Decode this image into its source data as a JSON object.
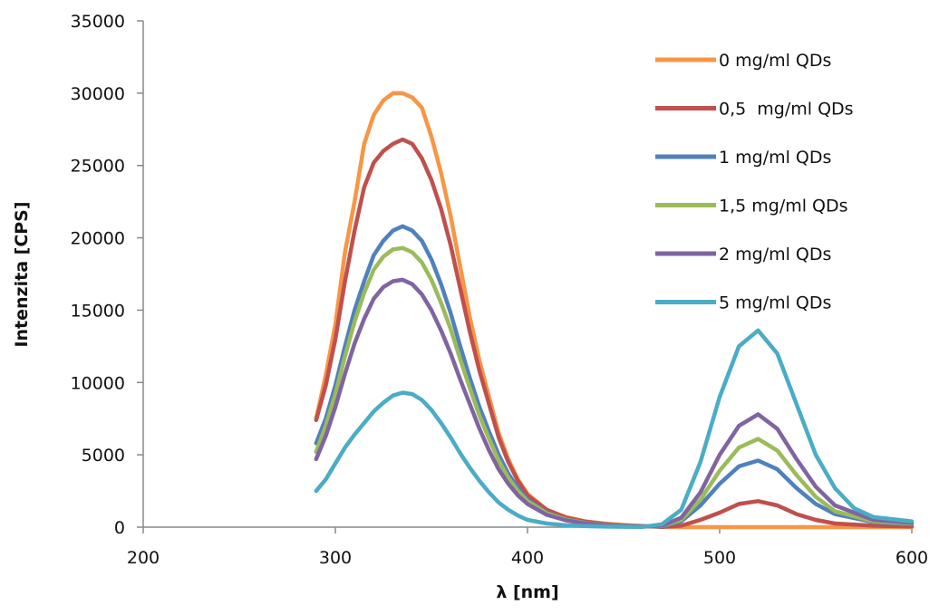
{
  "chart_data": {
    "type": "line",
    "title": "",
    "xlabel": "λ [nm]",
    "ylabel": "Intenzita [CPS]",
    "xlim": [
      200,
      600
    ],
    "ylim": [
      0,
      35000
    ],
    "x_ticks": [
      200,
      300,
      400,
      500,
      600
    ],
    "y_ticks": [
      0,
      5000,
      10000,
      15000,
      20000,
      25000,
      30000,
      35000
    ],
    "grid": false,
    "legend_position": "top-right",
    "series": [
      {
        "name": "0 mg/ml QDs",
        "color": "#F79646",
        "points": [
          [
            290,
            7500
          ],
          [
            295,
            10500
          ],
          [
            300,
            14000
          ],
          [
            305,
            19000
          ],
          [
            310,
            22500
          ],
          [
            315,
            26500
          ],
          [
            320,
            28500
          ],
          [
            325,
            29500
          ],
          [
            330,
            30000
          ],
          [
            335,
            30000
          ],
          [
            340,
            29700
          ],
          [
            345,
            29000
          ],
          [
            350,
            27000
          ],
          [
            355,
            24500
          ],
          [
            360,
            21500
          ],
          [
            365,
            18000
          ],
          [
            370,
            14500
          ],
          [
            375,
            11500
          ],
          [
            380,
            9000
          ],
          [
            385,
            6500
          ],
          [
            390,
            4700
          ],
          [
            395,
            3300
          ],
          [
            400,
            2300
          ],
          [
            410,
            1200
          ],
          [
            420,
            700
          ],
          [
            430,
            400
          ],
          [
            440,
            250
          ],
          [
            450,
            150
          ],
          [
            460,
            80
          ],
          [
            470,
            30
          ],
          [
            480,
            0
          ],
          [
            500,
            0
          ],
          [
            520,
            0
          ],
          [
            540,
            0
          ],
          [
            560,
            0
          ],
          [
            580,
            0
          ],
          [
            600,
            0
          ]
        ]
      },
      {
        "name": "0,5  mg/ml QDs",
        "color": "#C0504D",
        "points": [
          [
            290,
            7400
          ],
          [
            295,
            9800
          ],
          [
            300,
            13000
          ],
          [
            305,
            17000
          ],
          [
            310,
            20500
          ],
          [
            315,
            23500
          ],
          [
            320,
            25200
          ],
          [
            325,
            26000
          ],
          [
            330,
            26500
          ],
          [
            335,
            26800
          ],
          [
            340,
            26500
          ],
          [
            345,
            25500
          ],
          [
            350,
            24000
          ],
          [
            355,
            22000
          ],
          [
            360,
            19500
          ],
          [
            365,
            16500
          ],
          [
            370,
            13500
          ],
          [
            375,
            10800
          ],
          [
            380,
            8500
          ],
          [
            385,
            6200
          ],
          [
            390,
            4500
          ],
          [
            395,
            3200
          ],
          [
            400,
            2200
          ],
          [
            410,
            1200
          ],
          [
            420,
            650
          ],
          [
            430,
            380
          ],
          [
            440,
            220
          ],
          [
            450,
            120
          ],
          [
            460,
            60
          ],
          [
            470,
            20
          ],
          [
            480,
            100
          ],
          [
            490,
            500
          ],
          [
            500,
            1000
          ],
          [
            510,
            1600
          ],
          [
            520,
            1800
          ],
          [
            530,
            1500
          ],
          [
            540,
            900
          ],
          [
            550,
            500
          ],
          [
            560,
            250
          ],
          [
            580,
            100
          ],
          [
            600,
            50
          ]
        ]
      },
      {
        "name": "1 mg/ml QDs",
        "color": "#4F81BD",
        "points": [
          [
            290,
            5800
          ],
          [
            295,
            7500
          ],
          [
            300,
            9800
          ],
          [
            305,
            12500
          ],
          [
            310,
            15000
          ],
          [
            315,
            17000
          ],
          [
            320,
            18800
          ],
          [
            325,
            19800
          ],
          [
            330,
            20500
          ],
          [
            335,
            20800
          ],
          [
            340,
            20500
          ],
          [
            345,
            19800
          ],
          [
            350,
            18500
          ],
          [
            355,
            16800
          ],
          [
            360,
            14800
          ],
          [
            365,
            12500
          ],
          [
            370,
            10300
          ],
          [
            375,
            8300
          ],
          [
            380,
            6600
          ],
          [
            385,
            5000
          ],
          [
            390,
            3700
          ],
          [
            395,
            2700
          ],
          [
            400,
            1900
          ],
          [
            410,
            1000
          ],
          [
            420,
            550
          ],
          [
            430,
            300
          ],
          [
            440,
            170
          ],
          [
            450,
            90
          ],
          [
            460,
            40
          ],
          [
            470,
            60
          ],
          [
            480,
            400
          ],
          [
            490,
            1500
          ],
          [
            500,
            3000
          ],
          [
            510,
            4200
          ],
          [
            520,
            4600
          ],
          [
            530,
            4000
          ],
          [
            540,
            2700
          ],
          [
            550,
            1600
          ],
          [
            560,
            900
          ],
          [
            580,
            350
          ],
          [
            600,
            200
          ]
        ]
      },
      {
        "name": "1,5 mg/ml QDs",
        "color": "#9BBB59",
        "points": [
          [
            290,
            5200
          ],
          [
            295,
            7000
          ],
          [
            300,
            9200
          ],
          [
            305,
            11800
          ],
          [
            310,
            14200
          ],
          [
            315,
            16200
          ],
          [
            320,
            17800
          ],
          [
            325,
            18700
          ],
          [
            330,
            19200
          ],
          [
            335,
            19300
          ],
          [
            340,
            19000
          ],
          [
            345,
            18300
          ],
          [
            350,
            17100
          ],
          [
            355,
            15500
          ],
          [
            360,
            13700
          ],
          [
            365,
            11600
          ],
          [
            370,
            9600
          ],
          [
            375,
            7700
          ],
          [
            380,
            6100
          ],
          [
            385,
            4600
          ],
          [
            390,
            3400
          ],
          [
            395,
            2500
          ],
          [
            400,
            1800
          ],
          [
            410,
            950
          ],
          [
            420,
            520
          ],
          [
            430,
            290
          ],
          [
            440,
            160
          ],
          [
            450,
            85
          ],
          [
            460,
            40
          ],
          [
            470,
            80
          ],
          [
            480,
            500
          ],
          [
            490,
            1900
          ],
          [
            500,
            3900
          ],
          [
            510,
            5500
          ],
          [
            520,
            6100
          ],
          [
            530,
            5300
          ],
          [
            540,
            3600
          ],
          [
            550,
            2100
          ],
          [
            560,
            1100
          ],
          [
            580,
            400
          ],
          [
            600,
            250
          ]
        ]
      },
      {
        "name": "2 mg/ml QDs",
        "color": "#8064A2",
        "points": [
          [
            290,
            4700
          ],
          [
            295,
            6300
          ],
          [
            300,
            8300
          ],
          [
            305,
            10600
          ],
          [
            310,
            12700
          ],
          [
            315,
            14400
          ],
          [
            320,
            15800
          ],
          [
            325,
            16600
          ],
          [
            330,
            17000
          ],
          [
            335,
            17100
          ],
          [
            340,
            16800
          ],
          [
            345,
            16100
          ],
          [
            350,
            15000
          ],
          [
            355,
            13600
          ],
          [
            360,
            12000
          ],
          [
            365,
            10200
          ],
          [
            370,
            8500
          ],
          [
            375,
            6800
          ],
          [
            380,
            5300
          ],
          [
            385,
            4000
          ],
          [
            390,
            3000
          ],
          [
            395,
            2200
          ],
          [
            400,
            1600
          ],
          [
            410,
            850
          ],
          [
            420,
            470
          ],
          [
            430,
            260
          ],
          [
            440,
            140
          ],
          [
            450,
            75
          ],
          [
            460,
            40
          ],
          [
            470,
            100
          ],
          [
            480,
            650
          ],
          [
            490,
            2400
          ],
          [
            500,
            5000
          ],
          [
            510,
            7000
          ],
          [
            520,
            7800
          ],
          [
            530,
            6800
          ],
          [
            540,
            4700
          ],
          [
            550,
            2800
          ],
          [
            560,
            1500
          ],
          [
            580,
            500
          ],
          [
            600,
            300
          ]
        ]
      },
      {
        "name": "5 mg/ml QDs",
        "color": "#4BACC6",
        "points": [
          [
            290,
            2500
          ],
          [
            295,
            3300
          ],
          [
            300,
            4400
          ],
          [
            305,
            5500
          ],
          [
            310,
            6400
          ],
          [
            315,
            7200
          ],
          [
            320,
            8000
          ],
          [
            325,
            8600
          ],
          [
            330,
            9100
          ],
          [
            335,
            9300
          ],
          [
            340,
            9200
          ],
          [
            345,
            8800
          ],
          [
            350,
            8100
          ],
          [
            355,
            7200
          ],
          [
            360,
            6200
          ],
          [
            365,
            5100
          ],
          [
            370,
            4100
          ],
          [
            375,
            3200
          ],
          [
            380,
            2400
          ],
          [
            385,
            1700
          ],
          [
            390,
            1200
          ],
          [
            395,
            800
          ],
          [
            400,
            500
          ],
          [
            410,
            250
          ],
          [
            420,
            130
          ],
          [
            430,
            70
          ],
          [
            440,
            40
          ],
          [
            450,
            25
          ],
          [
            460,
            20
          ],
          [
            470,
            200
          ],
          [
            480,
            1200
          ],
          [
            490,
            4500
          ],
          [
            500,
            9000
          ],
          [
            510,
            12500
          ],
          [
            520,
            13600
          ],
          [
            530,
            12000
          ],
          [
            540,
            8500
          ],
          [
            550,
            5000
          ],
          [
            560,
            2700
          ],
          [
            570,
            1300
          ],
          [
            580,
            700
          ],
          [
            600,
            400
          ]
        ]
      }
    ]
  }
}
